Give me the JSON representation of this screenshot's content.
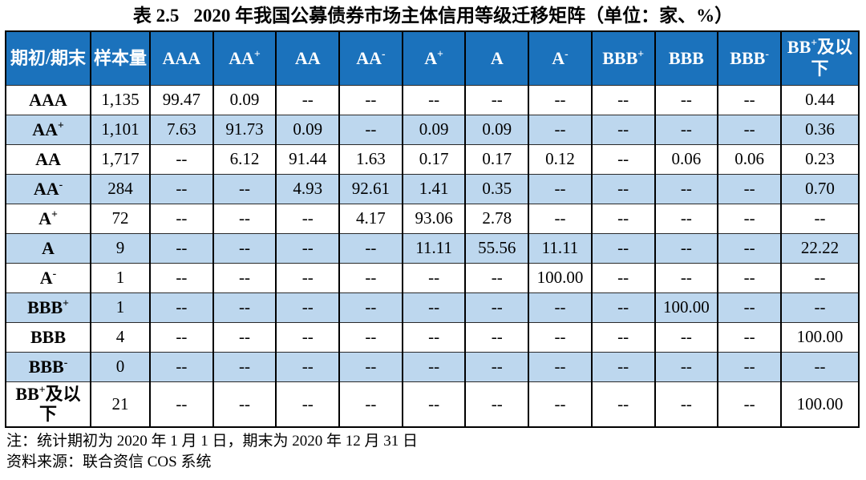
{
  "title": {
    "prefix": "表 2.5",
    "main": "2020 年我国公募债券市场主体信用等级迁移矩阵（单位：家、%）"
  },
  "colors": {
    "header_bg": "#1b72bc",
    "header_text": "#ffffff",
    "stripe_bg": "#bdd7ee",
    "border": "#000000",
    "text": "#000000"
  },
  "table": {
    "columns": [
      "期初/期末",
      "样本量",
      "AAA",
      "AA^+",
      "AA",
      "AA^-",
      "A^+",
      "A",
      "A^-",
      "BBB^+",
      "BBB",
      "BBB^-",
      "BB^+及以下"
    ],
    "rows": [
      {
        "label": "AAA",
        "sample": "1,135",
        "values": [
          "99.47",
          "0.09",
          "--",
          "--",
          "--",
          "--",
          "--",
          "--",
          "--",
          "--",
          "0.44"
        ]
      },
      {
        "label": "AA^+",
        "sample": "1,101",
        "values": [
          "7.63",
          "91.73",
          "0.09",
          "--",
          "0.09",
          "0.09",
          "--",
          "--",
          "--",
          "--",
          "0.36"
        ]
      },
      {
        "label": "AA",
        "sample": "1,717",
        "values": [
          "--",
          "6.12",
          "91.44",
          "1.63",
          "0.17",
          "0.17",
          "0.12",
          "--",
          "0.06",
          "0.06",
          "0.23"
        ]
      },
      {
        "label": "AA^-",
        "sample": "284",
        "values": [
          "--",
          "--",
          "4.93",
          "92.61",
          "1.41",
          "0.35",
          "--",
          "--",
          "--",
          "--",
          "0.70"
        ]
      },
      {
        "label": "A^+",
        "sample": "72",
        "values": [
          "--",
          "--",
          "--",
          "4.17",
          "93.06",
          "2.78",
          "--",
          "--",
          "--",
          "--",
          "--"
        ]
      },
      {
        "label": "A",
        "sample": "9",
        "values": [
          "--",
          "--",
          "--",
          "--",
          "11.11",
          "55.56",
          "11.11",
          "--",
          "--",
          "--",
          "22.22"
        ]
      },
      {
        "label": "A^-",
        "sample": "1",
        "values": [
          "--",
          "--",
          "--",
          "--",
          "--",
          "--",
          "100.00",
          "--",
          "--",
          "--",
          "--"
        ]
      },
      {
        "label": "BBB^+",
        "sample": "1",
        "values": [
          "--",
          "--",
          "--",
          "--",
          "--",
          "--",
          "--",
          "--",
          "100.00",
          "--",
          "--"
        ]
      },
      {
        "label": "BBB",
        "sample": "4",
        "values": [
          "--",
          "--",
          "--",
          "--",
          "--",
          "--",
          "--",
          "--",
          "--",
          "--",
          "100.00"
        ]
      },
      {
        "label": "BBB^-",
        "sample": "0",
        "values": [
          "--",
          "--",
          "--",
          "--",
          "--",
          "--",
          "--",
          "--",
          "--",
          "--",
          "--"
        ]
      },
      {
        "label": "BB^+及以下",
        "sample": "21",
        "values": [
          "--",
          "--",
          "--",
          "--",
          "--",
          "--",
          "--",
          "--",
          "--",
          "--",
          "100.00"
        ]
      }
    ]
  },
  "notes": [
    "注：统计期初为 2020 年 1 月 1 日，期末为 2020 年 12 月 31 日",
    "资料来源：联合资信 COS 系统"
  ]
}
